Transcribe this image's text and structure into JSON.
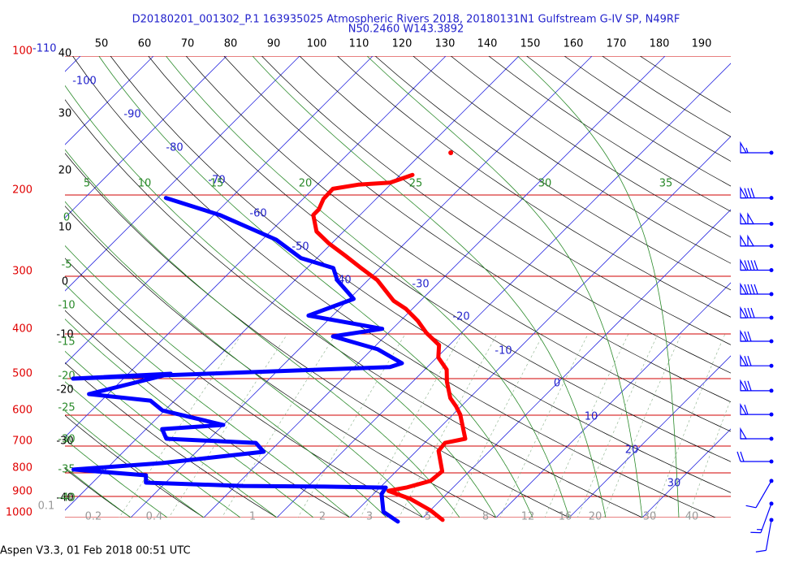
{
  "header": {
    "title": "D20180201_001302_P.1 163935025 Atmospheric Rivers 2018, 20180131N1 Gulfstream G-IV SP, N49RF",
    "subtitle": "N50.2460 W143.3892"
  },
  "footer": "Aspen V3.3, 01 Feb 2018  00:51 UTC",
  "chart_data": {
    "type": "skewt",
    "pressure_labels": [
      100,
      200,
      300,
      400,
      500,
      600,
      700,
      800,
      900,
      1000
    ],
    "isotherm_labels": [
      -110,
      -100,
      -90,
      -80,
      -70,
      -60,
      -50,
      -40,
      -30,
      -20,
      -10,
      0,
      10,
      20,
      30
    ],
    "dry_adiabat_labels_top": [
      50,
      60,
      70,
      80,
      90,
      100,
      110,
      120,
      130,
      140,
      150,
      160,
      170,
      180,
      190
    ],
    "dry_adiabat_labels_left": [
      40,
      30,
      20,
      10,
      0,
      -10,
      -20,
      -30,
      -40
    ],
    "moist_adiabat_labels_top": [
      5,
      10,
      15,
      20,
      25,
      30,
      35
    ],
    "moist_adiabat_labels_left": [
      0,
      -5,
      -10,
      -15,
      -20,
      -25,
      -30,
      -35,
      -40
    ],
    "mixing_ratio_labels": [
      0.1,
      0.2,
      0.4,
      1,
      2,
      3,
      5,
      8,
      12,
      16,
      20,
      30,
      40
    ],
    "temperature_profile": {
      "color": "#ff0000",
      "pressure": [
        1012,
        964,
        911,
        875,
        861,
        833,
        794,
        717,
        689,
        675,
        598,
        574,
        551,
        508,
        478,
        450,
        423,
        398,
        375,
        353,
        339,
        306,
        288,
        271,
        255,
        240,
        221,
        215,
        204,
        194,
        190,
        188,
        181
      ],
      "temperature": [
        3.0,
        0.0,
        -4.3,
        -8.4,
        -6.4,
        -4.0,
        -3.7,
        -7.0,
        -7.2,
        -5.0,
        -9.0,
        -10.7,
        -12.6,
        -15.3,
        -17.0,
        -19.8,
        -21.4,
        -24.8,
        -27.6,
        -30.9,
        -33.7,
        -38.7,
        -42.6,
        -46.4,
        -50.3,
        -53.7,
        -56.4,
        -56.4,
        -57.2,
        -57.3,
        -54.4,
        -50.3,
        -48.3
      ]
    },
    "isolated_point": {
      "color": "#ff0000",
      "pressure": 162,
      "temperature": -46.1
    },
    "dewpoint_profile": {
      "color": "#0000ff",
      "pressure": [
        1020,
        972,
        889,
        861,
        857,
        854,
        840,
        810,
        787,
        762,
        720,
        689,
        675,
        643,
        630,
        586,
        558,
        540,
        488,
        500,
        472,
        463,
        432,
        405,
        390,
        365,
        336,
        306,
        288,
        274,
        250,
        221,
        203
      ],
      "temperature": [
        -2.9,
        -6.2,
        -8.9,
        -9.2,
        -17.7,
        -28.9,
        -42.7,
        -43.7,
        -54.4,
        -43.1,
        -30.8,
        -33.1,
        -45.9,
        -47.8,
        -40.0,
        -50.3,
        -53.3,
        -62.6,
        -54.2,
        -66.9,
        -25.1,
        -24.0,
        -29.2,
        -37.1,
        -31.4,
        -43.3,
        -39.4,
        -44.2,
        -46.4,
        -52.2,
        -58.1,
        -69.2,
        -78.9
      ]
    },
    "winds": {
      "color": "#0000ff",
      "pressure": [
        162,
        203,
        231,
        258,
        291,
        328,
        369,
        415,
        469,
        531,
        598,
        675,
        756,
        833,
        933,
        1012
      ],
      "speed": [
        55,
        80,
        100,
        100,
        90,
        90,
        80,
        70,
        70,
        70,
        60,
        50,
        20,
        10,
        15,
        10
      ],
      "direction": [
        270,
        270,
        270,
        270,
        270,
        270,
        270,
        270,
        270,
        270,
        270,
        270,
        270,
        210,
        200,
        190
      ]
    }
  }
}
